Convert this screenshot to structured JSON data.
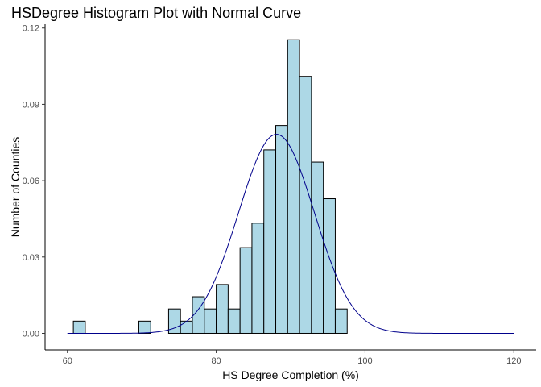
{
  "chart_data": {
    "type": "bar",
    "title": "HSDegree Histogram Plot with Normal Curve",
    "xlabel": "HS Degree Completion (%)",
    "ylabel": "Number of Counties",
    "xlim": [
      57,
      123
    ],
    "ylim": [
      -0.0065,
      0.1215
    ],
    "x_ticks": [
      60,
      80,
      100,
      120
    ],
    "x_tick_labels": [
      "60",
      "80",
      "100",
      "120"
    ],
    "y_ticks": [
      0.0,
      0.03,
      0.06,
      0.09,
      0.12
    ],
    "y_tick_labels": [
      "0.00",
      "0.03",
      "0.06",
      "0.09",
      "0.12"
    ],
    "grid": false,
    "bin_width": 1.6,
    "bins": [
      {
        "x0": 60.8,
        "x1": 62.4,
        "density": 0.0048
      },
      {
        "x0": 69.6,
        "x1": 71.2,
        "density": 0.0048
      },
      {
        "x0": 73.6,
        "x1": 75.2,
        "density": 0.0096
      },
      {
        "x0": 75.2,
        "x1": 76.8,
        "density": 0.0048
      },
      {
        "x0": 76.8,
        "x1": 78.4,
        "density": 0.0144
      },
      {
        "x0": 78.4,
        "x1": 80.0,
        "density": 0.0096
      },
      {
        "x0": 80.0,
        "x1": 81.6,
        "density": 0.0192
      },
      {
        "x0": 81.6,
        "x1": 83.2,
        "density": 0.0096
      },
      {
        "x0": 83.2,
        "x1": 84.8,
        "density": 0.0337
      },
      {
        "x0": 84.8,
        "x1": 86.4,
        "density": 0.0433
      },
      {
        "x0": 86.4,
        "x1": 88.0,
        "density": 0.0721
      },
      {
        "x0": 88.0,
        "x1": 89.6,
        "density": 0.0817
      },
      {
        "x0": 89.6,
        "x1": 91.2,
        "density": 0.1154
      },
      {
        "x0": 91.2,
        "x1": 92.8,
        "density": 0.101
      },
      {
        "x0": 92.8,
        "x1": 94.4,
        "density": 0.0673
      },
      {
        "x0": 94.4,
        "x1": 96.0,
        "density": 0.0529
      },
      {
        "x0": 96.0,
        "x1": 97.6,
        "density": 0.0096
      }
    ],
    "normal_curve": {
      "mean": 88.1,
      "sd": 5.1,
      "x_range": [
        60,
        120
      ],
      "color": "#00008B"
    },
    "colors": {
      "bar_fill": "#ADD8E6",
      "bar_stroke": "#000000",
      "curve": "#00008B"
    }
  }
}
